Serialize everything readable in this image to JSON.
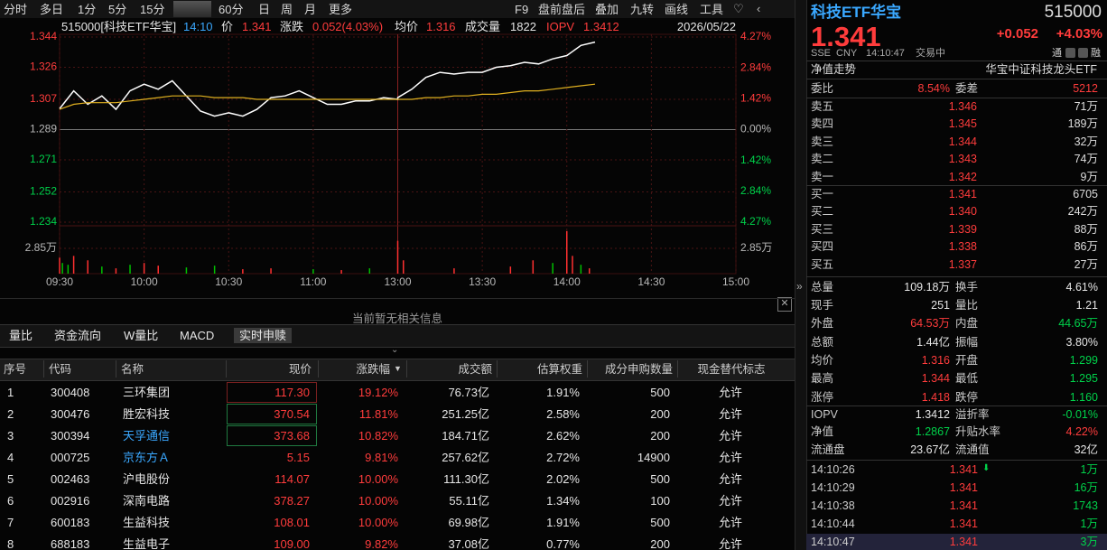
{
  "toolbar": {
    "left": [
      "分时",
      "多日",
      "1分",
      "5分",
      "15分",
      "60分",
      "日",
      "周",
      "月",
      "更多"
    ],
    "right": [
      "F9",
      "盘前盘后",
      "叠加",
      "九转",
      "画线",
      "工具"
    ]
  },
  "chart_header": {
    "code_name": "515000[科技ETF华宝]",
    "time": "14:10",
    "price_label": "价",
    "price": "1.341",
    "change_label": "涨跌",
    "change": "0.052(4.03%)",
    "avg_label": "均价",
    "avg": "1.316",
    "vol_label": "成交量",
    "vol": "1822",
    "iopv_label": "IOPV",
    "iopv": "1.3412",
    "date": "2026/05/22"
  },
  "chart_data": [
    {
      "type": "line",
      "x": [
        "09:30",
        "09:35",
        "09:40",
        "09:45",
        "09:50",
        "09:55",
        "10:00",
        "10:05",
        "10:10",
        "10:15",
        "10:20",
        "10:25",
        "10:30",
        "10:35",
        "10:40",
        "10:45",
        "10:50",
        "10:55",
        "11:00",
        "11:05",
        "11:10",
        "11:15",
        "11:20",
        "11:25",
        "11:30",
        "13:00",
        "13:05",
        "13:10",
        "13:15",
        "13:20",
        "13:25",
        "13:30",
        "13:35",
        "13:40",
        "13:45",
        "13:50",
        "13:55",
        "14:00",
        "14:05",
        "14:10"
      ],
      "series": [
        {
          "color": "#ffffff",
          "values": [
            1.3014,
            1.312,
            1.304,
            1.309,
            1.301,
            1.312,
            1.316,
            1.313,
            1.318,
            1.309,
            1.3,
            1.297,
            1.299,
            1.297,
            1.301,
            1.308,
            1.309,
            1.312,
            1.308,
            1.304,
            1.304,
            1.306,
            1.306,
            1.308,
            1.307,
            1.308,
            1.313,
            1.32,
            1.323,
            1.322,
            1.323,
            1.323,
            1.326,
            1.327,
            1.329,
            1.328,
            1.331,
            1.333,
            1.339,
            1.341
          ]
        },
        {
          "color": "#e0b020",
          "values": [
            1.301,
            1.304,
            1.305,
            1.305,
            1.305,
            1.306,
            1.307,
            1.308,
            1.309,
            1.309,
            1.309,
            1.308,
            1.308,
            1.308,
            1.307,
            1.307,
            1.307,
            1.307,
            1.307,
            1.307,
            1.307,
            1.307,
            1.307,
            1.307,
            1.307,
            1.307,
            1.307,
            1.308,
            1.308,
            1.309,
            1.309,
            1.31,
            1.31,
            1.311,
            1.312,
            1.312,
            1.313,
            1.314,
            1.315,
            1.316
          ]
        }
      ],
      "ylim": [
        1.234,
        1.344
      ],
      "yticks": [
        1.344,
        1.326,
        1.307,
        1.289,
        1.271,
        1.252,
        1.234
      ],
      "y2lim": [
        -4.27,
        4.27
      ],
      "y2ticks": [
        {
          "value": 4.27,
          "label": "4.27%"
        },
        {
          "value": 2.84,
          "label": "2.84%"
        },
        {
          "value": 1.42,
          "label": "1.42%"
        },
        {
          "value": 0,
          "label": "0.00%"
        },
        {
          "value": -1.42,
          "label": "1.42%"
        },
        {
          "value": -2.84,
          "label": "2.84%"
        },
        {
          "value": -4.27,
          "label": "4.27%"
        }
      ],
      "xticks": [
        "09:30",
        "10:00",
        "10:30",
        "11:00",
        "13:00",
        "13:30",
        "14:00",
        "14:30",
        "15:00"
      ],
      "grid": true
    },
    {
      "type": "bar",
      "x": [
        "09:30",
        "09:31",
        "09:33",
        "09:35",
        "09:40",
        "09:45",
        "09:50",
        "09:55",
        "10:00",
        "10:05",
        "10:15",
        "10:25",
        "10:35",
        "10:45",
        "11:00",
        "11:10",
        "11:20",
        "13:00",
        "13:02",
        "13:20",
        "13:40",
        "13:48",
        "13:55",
        "14:00",
        "14:02",
        "14:05",
        "14:08"
      ],
      "values": [
        1.8,
        1.2,
        1.0,
        2.0,
        1.5,
        0.8,
        0.6,
        1.0,
        1.2,
        0.9,
        0.7,
        0.9,
        0.5,
        0.6,
        0.5,
        0.4,
        0.6,
        3.7,
        1.5,
        0.6,
        0.8,
        1.5,
        1.2,
        4.8,
        2.0,
        1.0,
        0.6
      ],
      "colors": [
        "#ff3030",
        "#00c000",
        "#00c000",
        "#ff3030",
        "#ff3030",
        "#00c000",
        "#ff3030",
        "#00c000",
        "#ff3030",
        "#ff3030",
        "#00c000",
        "#00c000",
        "#ff3030",
        "#ff3030",
        "#00c000",
        "#ff3030",
        "#00c000",
        "#ff3030",
        "#ff3030",
        "#ff3030",
        "#ff3030",
        "#ff3030",
        "#00c000",
        "#ff3030",
        "#ff3030",
        "#00c000",
        "#ff3030"
      ],
      "ylim": [
        0,
        5.39
      ],
      "yticks": [
        {
          "value": 2.85,
          "label": "2.85万"
        }
      ]
    }
  ],
  "empty_notice": "当前暂无相关信息",
  "tabs": [
    "量比",
    "资金流向",
    "W量比",
    "MACD",
    "实时申赎"
  ],
  "table": {
    "headers": [
      "序号",
      "代码",
      "名称",
      "现价",
      "涨跌幅",
      "成交额",
      "估算权重",
      "成分申购数量",
      "现金替代标志"
    ],
    "rows": [
      [
        "1",
        "300408",
        "三环集团",
        "117.30",
        "19.12%",
        "76.73亿",
        "1.91%",
        "500",
        "允许"
      ],
      [
        "2",
        "300476",
        "胜宏科技",
        "370.54",
        "11.81%",
        "251.25亿",
        "2.58%",
        "200",
        "允许"
      ],
      [
        "3",
        "300394",
        "天孚通信",
        "373.68",
        "10.82%",
        "184.71亿",
        "2.62%",
        "200",
        "允许"
      ],
      [
        "4",
        "000725",
        "京东方Ａ",
        "5.15",
        "9.81%",
        "257.62亿",
        "2.72%",
        "14900",
        "允许"
      ],
      [
        "5",
        "002463",
        "沪电股份",
        "114.07",
        "10.00%",
        "111.30亿",
        "2.02%",
        "500",
        "允许"
      ],
      [
        "6",
        "002916",
        "深南电路",
        "378.27",
        "10.00%",
        "55.11亿",
        "1.34%",
        "100",
        "允许"
      ],
      [
        "7",
        "600183",
        "生益科技",
        "108.01",
        "10.00%",
        "69.98亿",
        "1.91%",
        "500",
        "允许"
      ],
      [
        "8",
        "688183",
        "生益电子",
        "109.00",
        "9.82%",
        "37.08亿",
        "0.77%",
        "200",
        "允许"
      ]
    ]
  },
  "quote": {
    "name": "科技ETF华宝",
    "code": "515000",
    "price": "1.341",
    "change": "+0.052",
    "pct": "+4.03%",
    "exchange": "SSE",
    "currency": "CNY",
    "time": "14:10:47",
    "status": "交易中",
    "badges": [
      "通",
      "融"
    ]
  },
  "nav_bar": {
    "label": "净值走势",
    "fund": "华宝中证科技龙头ETF"
  },
  "order_book": {
    "ratio_label": "委比",
    "ratio": "8.54%",
    "diff_label": "委差",
    "diff": "5212",
    "asks": [
      [
        "卖五",
        "1.346",
        "71万"
      ],
      [
        "卖四",
        "1.345",
        "189万"
      ],
      [
        "卖三",
        "1.344",
        "32万"
      ],
      [
        "卖二",
        "1.343",
        "74万"
      ],
      [
        "卖一",
        "1.342",
        "9万"
      ]
    ],
    "bids": [
      [
        "买一",
        "1.341",
        "6705"
      ],
      [
        "买二",
        "1.340",
        "242万"
      ],
      [
        "买三",
        "1.339",
        "88万"
      ],
      [
        "买四",
        "1.338",
        "86万"
      ],
      [
        "买五",
        "1.337",
        "27万"
      ]
    ]
  },
  "stats": [
    [
      "总量",
      "109.18万",
      "换手",
      "4.61%"
    ],
    [
      "现手",
      "251",
      "量比",
      "1.21"
    ],
    [
      "外盘",
      "64.53万",
      "内盘",
      "44.65万"
    ],
    [
      "总额",
      "1.44亿",
      "振幅",
      "3.80%"
    ],
    [
      "均价",
      "1.316",
      "开盘",
      "1.299"
    ],
    [
      "最高",
      "1.344",
      "最低",
      "1.295"
    ],
    [
      "涨停",
      "1.418",
      "跌停",
      "1.160"
    ]
  ],
  "iopv_stats": [
    [
      "IOPV",
      "1.3412",
      "溢折率",
      "-0.01%"
    ],
    [
      "净值",
      "1.2867",
      "升贴水率",
      "4.22%"
    ],
    [
      "流通盘",
      "23.67亿",
      "流通值",
      "32亿"
    ]
  ],
  "trades": [
    [
      "14:10:26",
      "1.341",
      "1万"
    ],
    [
      "14:10:29",
      "1.341",
      "16万"
    ],
    [
      "14:10:38",
      "1.341",
      "1743"
    ],
    [
      "14:10:44",
      "1.341",
      "1万"
    ],
    [
      "14:10:47",
      "1.341",
      "3万"
    ]
  ]
}
